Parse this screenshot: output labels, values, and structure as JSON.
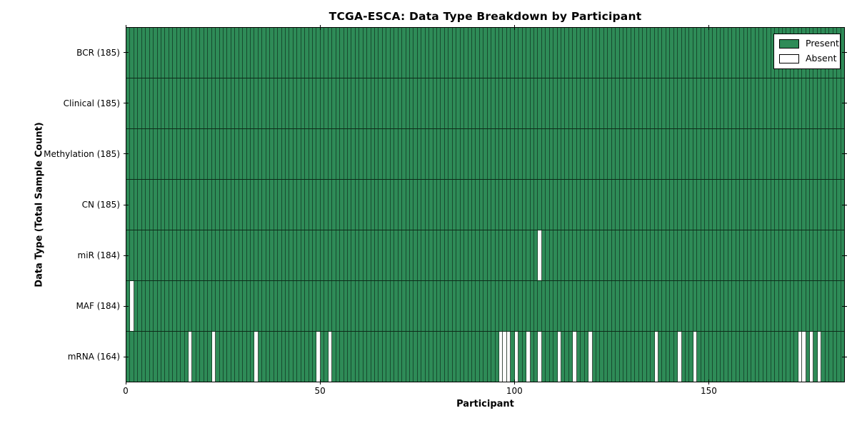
{
  "title": "TCGA-ESCA: Data Type Breakdown by Participant",
  "xlabel": "Participant",
  "ylabel": "Data Type (Total Sample Count)",
  "legend": {
    "present_label": "Present",
    "absent_label": "Absent"
  },
  "colors": {
    "present": "#2e8b57",
    "absent": "#ffffff",
    "edge": "#000000"
  },
  "x_ticks": [
    0,
    50,
    100,
    150
  ],
  "chart_data": {
    "type": "heatmap",
    "title": "TCGA-ESCA: Data Type Breakdown by Participant",
    "xlabel": "Participant",
    "ylabel": "Data Type (Total Sample Count)",
    "x_range": [
      0,
      185
    ],
    "n_participants": 185,
    "legend_entries": [
      "Present",
      "Absent"
    ],
    "legend_position": "upper right",
    "grid": false,
    "rows": [
      {
        "name": "BCR",
        "label": "BCR (185)",
        "total": 185,
        "absent_participants": []
      },
      {
        "name": "Clinical",
        "label": "Clinical (185)",
        "total": 185,
        "absent_participants": []
      },
      {
        "name": "Methylation",
        "label": "Methylation (185)",
        "total": 185,
        "absent_participants": []
      },
      {
        "name": "CN",
        "label": "CN (185)",
        "total": 185,
        "absent_participants": []
      },
      {
        "name": "miR",
        "label": "miR (184)",
        "total": 184,
        "absent_participants": [
          106
        ]
      },
      {
        "name": "MAF",
        "label": "MAF (184)",
        "total": 184,
        "absent_participants": [
          1
        ]
      },
      {
        "name": "mRNA",
        "label": "mRNA (164)",
        "total": 164,
        "absent_participants": [
          16,
          22,
          33,
          49,
          52,
          96,
          97,
          98,
          100,
          103,
          106,
          111,
          115,
          119,
          136,
          142,
          146,
          173,
          174,
          176,
          178
        ]
      }
    ]
  }
}
